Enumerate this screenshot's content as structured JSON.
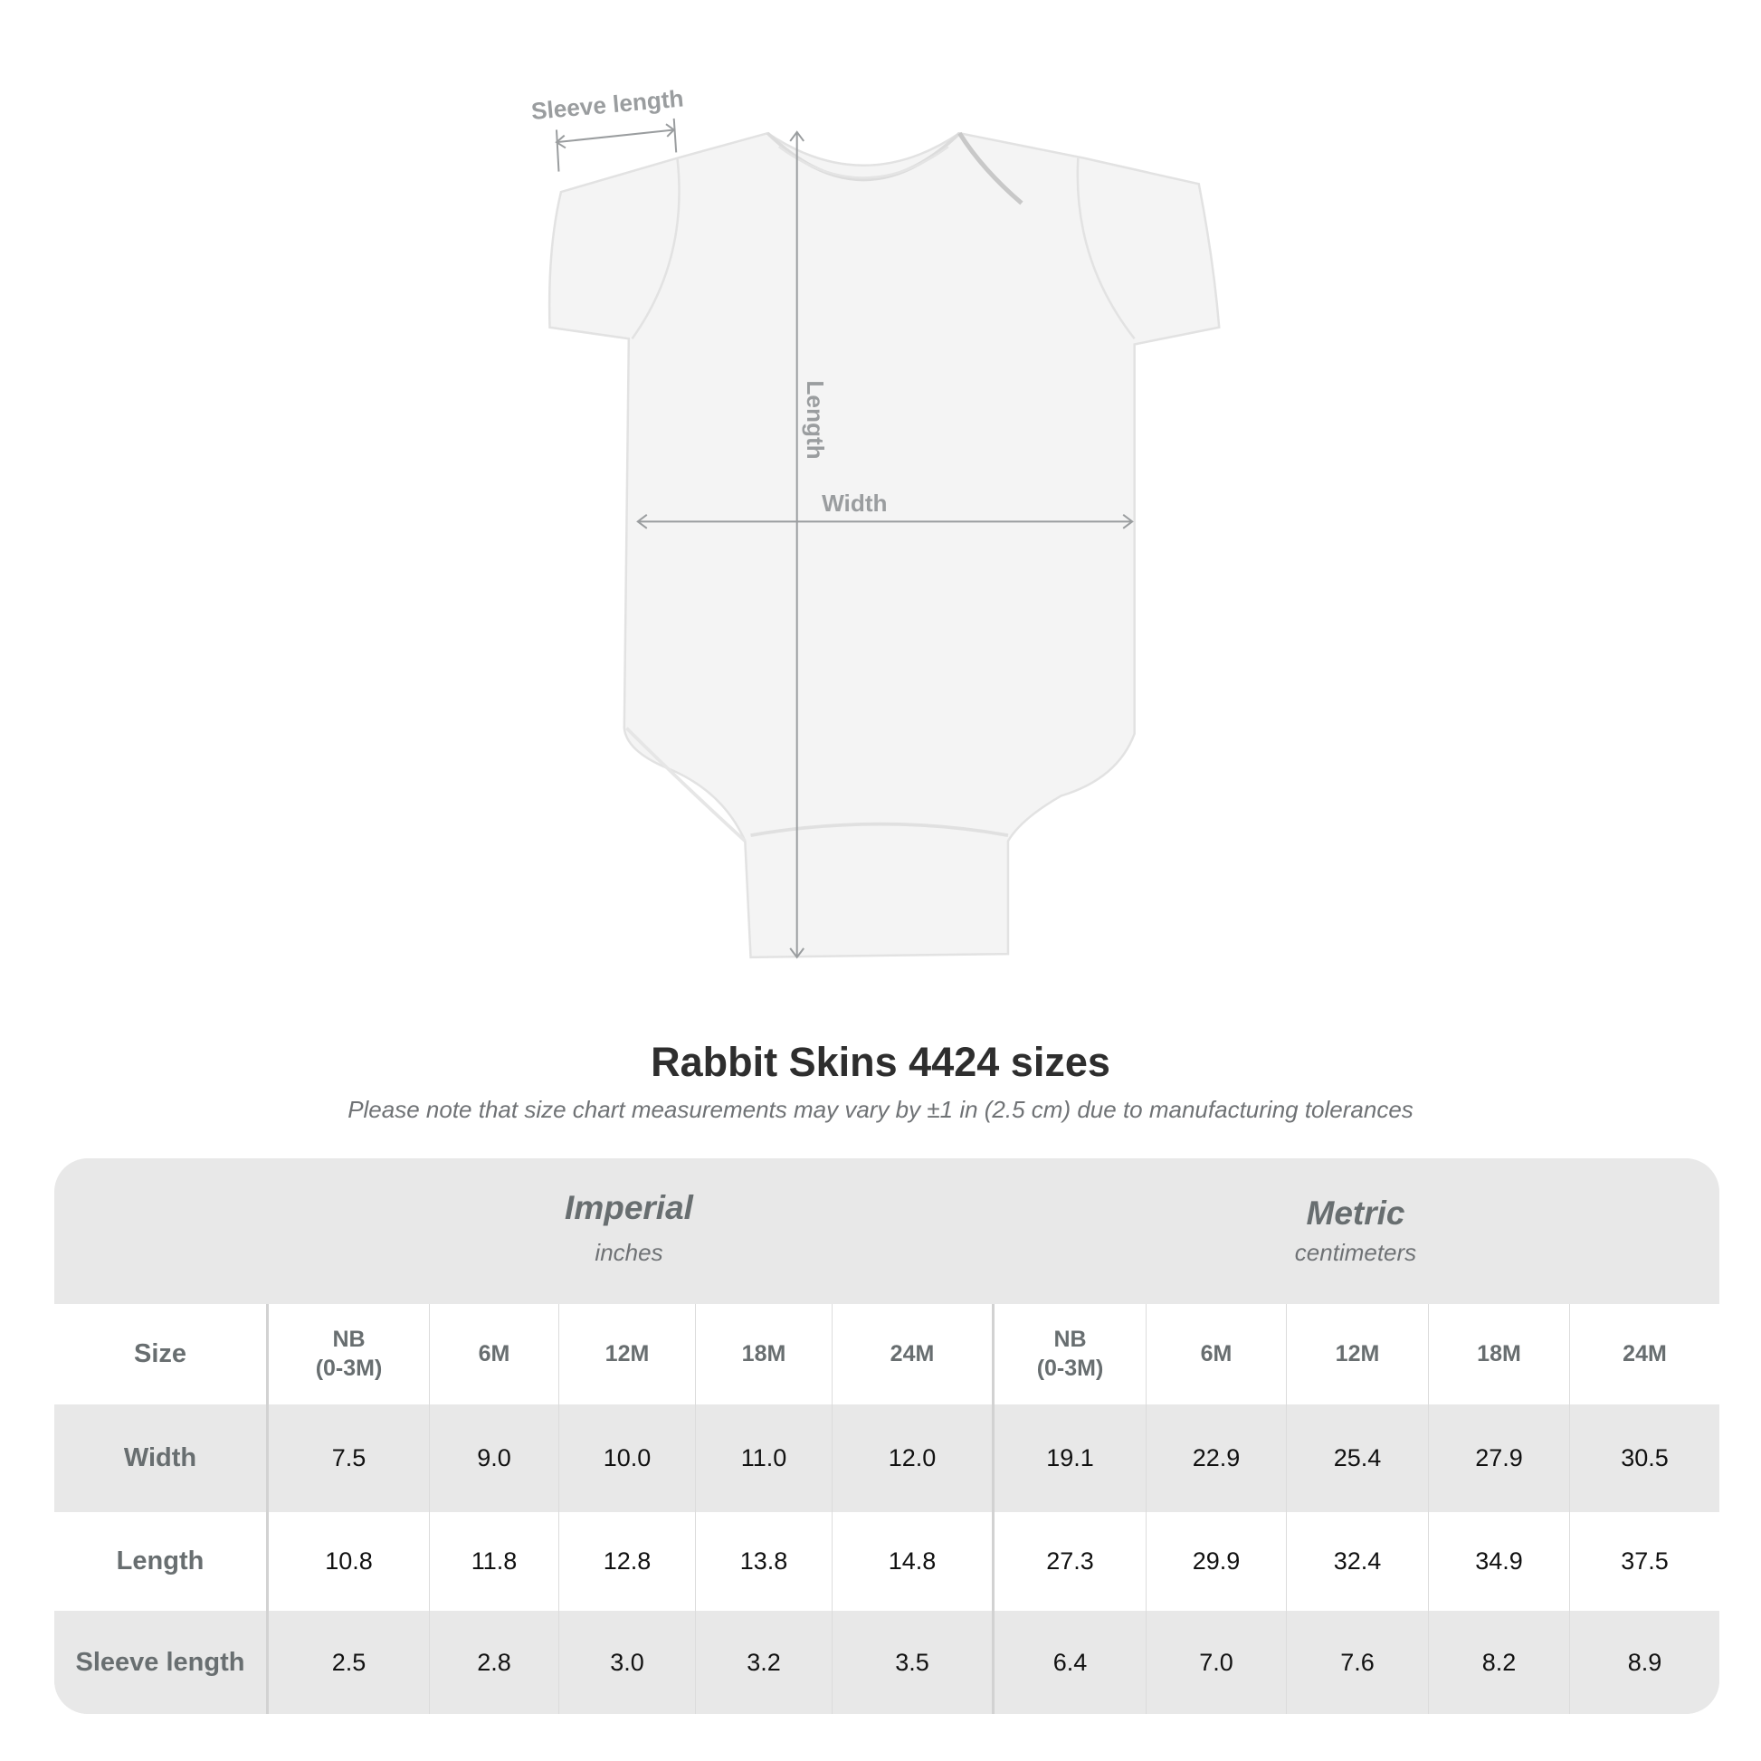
{
  "diagram": {
    "labels": {
      "sleeve": "Sleeve length",
      "length": "Length",
      "width": "Width"
    },
    "garment_color": "#f4f4f4",
    "measure_line_color": "#9a9d9f"
  },
  "header": {
    "title": "Rabbit Skins 4424 sizes",
    "subtitle": "Please note that size chart measurements may vary by ±1 in (2.5 cm) due to manufacturing tolerances"
  },
  "table": {
    "imperial": {
      "label": "Imperial",
      "unit": "inches"
    },
    "metric": {
      "label": "Metric",
      "unit": "centimeters"
    },
    "size_label": "Size",
    "sizes": [
      "NB\n(0-3M)",
      "6M",
      "12M",
      "18M",
      "24M"
    ],
    "rows": [
      {
        "label": "Width",
        "imperial": [
          "7.5",
          "9.0",
          "10.0",
          "11.0",
          "12.0"
        ],
        "metric": [
          "19.1",
          "22.9",
          "25.4",
          "27.9",
          "30.5"
        ]
      },
      {
        "label": "Length",
        "imperial": [
          "10.8",
          "11.8",
          "12.8",
          "13.8",
          "14.8"
        ],
        "metric": [
          "27.3",
          "29.9",
          "32.4",
          "34.9",
          "37.5"
        ]
      },
      {
        "label": "Sleeve length",
        "imperial": [
          "2.5",
          "2.8",
          "3.0",
          "3.2",
          "3.5"
        ],
        "metric": [
          "6.4",
          "7.0",
          "7.6",
          "8.2",
          "8.9"
        ]
      }
    ]
  }
}
